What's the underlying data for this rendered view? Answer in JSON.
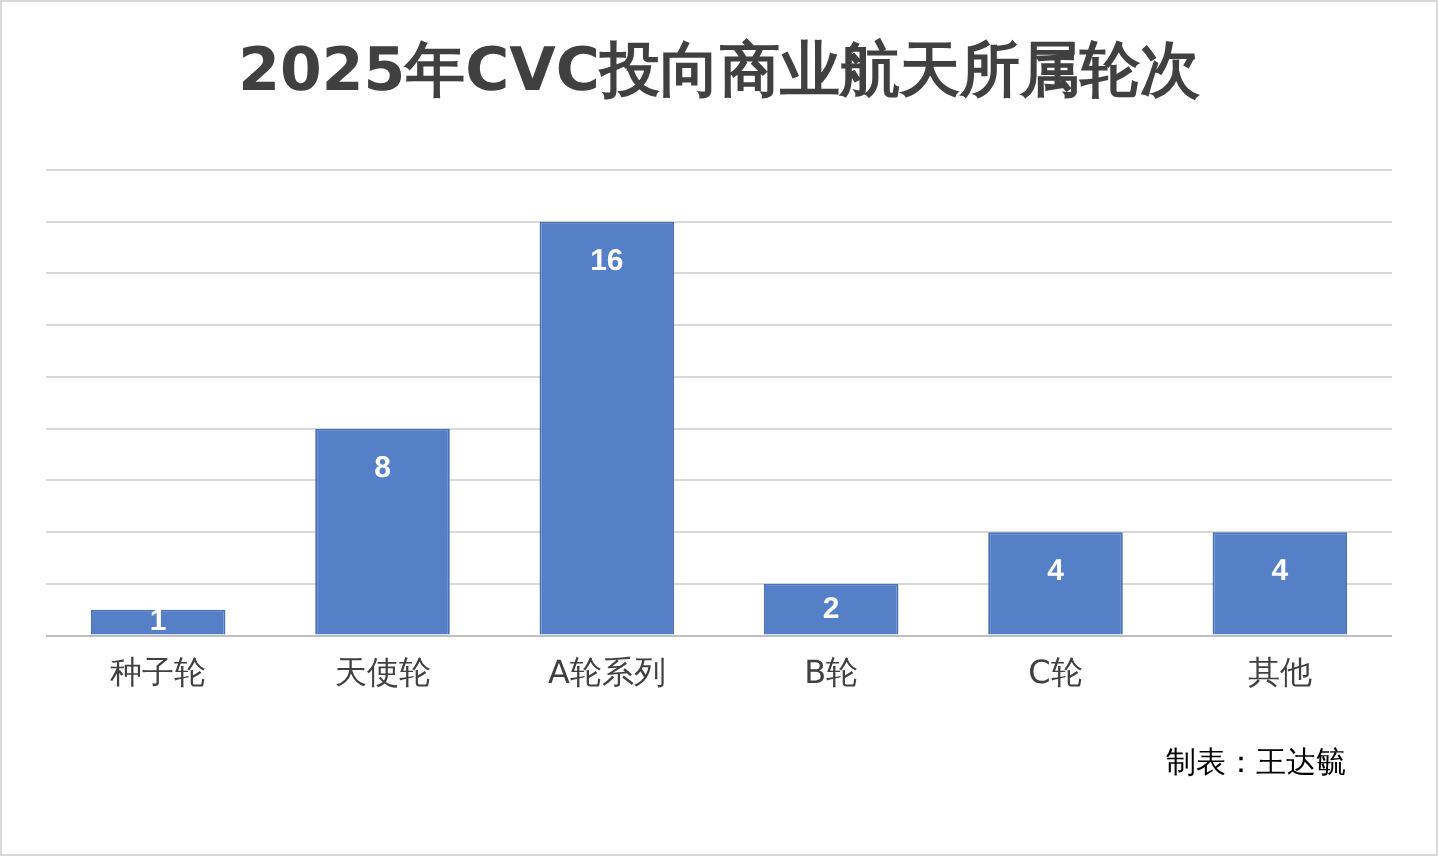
{
  "chart_data": {
    "type": "bar",
    "title": "2025年CVC投向商业航天所属轮次",
    "categories": [
      "种子轮",
      "天使轮",
      "A轮系列",
      "B轮",
      "C轮",
      "其他"
    ],
    "values": [
      1,
      8,
      16,
      2,
      4,
      4
    ],
    "color": "#5580c8",
    "ylim": [
      0,
      18
    ],
    "yticks": [
      {
        "value": 0,
        "label": null
      },
      {
        "value": 2,
        "label": null
      },
      {
        "value": 4,
        "label": null
      },
      {
        "value": 6,
        "label": null
      },
      {
        "value": 8,
        "label": null
      },
      {
        "value": 10,
        "label": null
      },
      {
        "value": 12,
        "label": null
      },
      {
        "value": 14,
        "label": null
      },
      {
        "value": 16,
        "label": null
      },
      {
        "value": 18,
        "label": null
      }
    ],
    "grid": "y",
    "tick_labels": "x",
    "data_labels": true,
    "annotations": [
      "制表：王达毓"
    ]
  }
}
